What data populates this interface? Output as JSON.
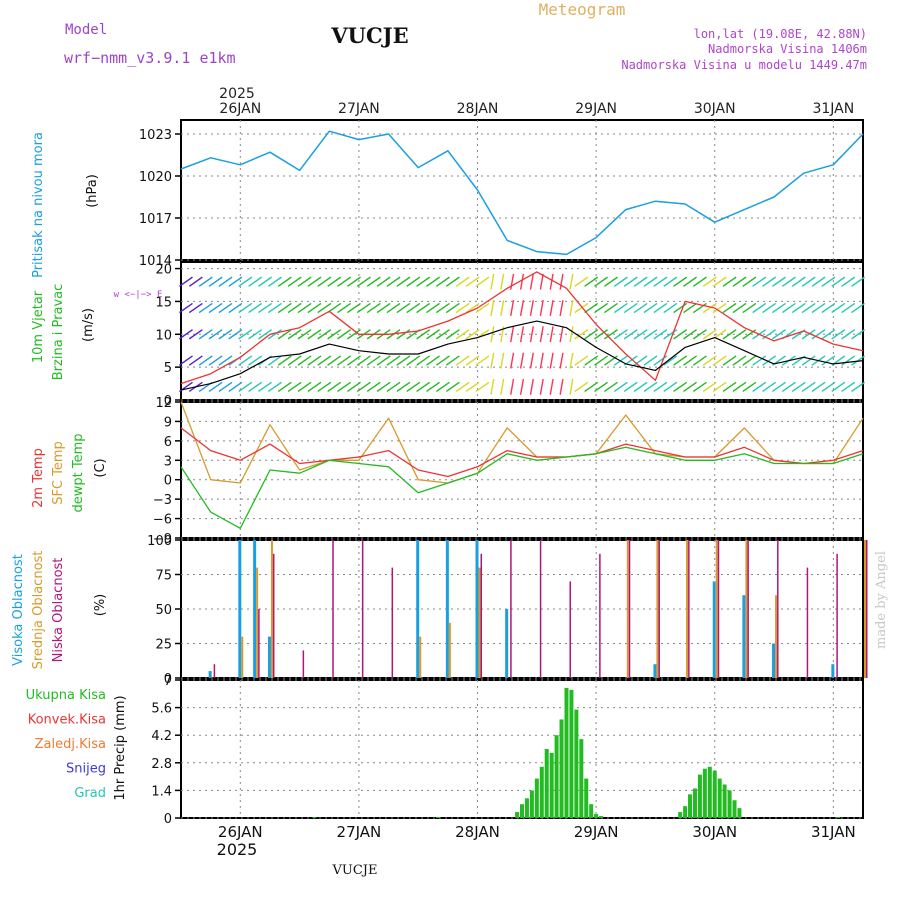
{
  "header": {
    "model_label": "Model",
    "model_name": "wrf−nmm_v3.9.1  e1km",
    "station": "VUCJE",
    "meteogram_label": "Meteogram",
    "lonlat": "lon,lat (19.08E, 42.88N)",
    "elevation": "Nadmorska Visina 1406m",
    "model_elevation": "Nadmorska Visina u modelu 1449.47m"
  },
  "footer": {
    "station": "VUCJE",
    "watermark": "made by Angel"
  },
  "time_axis": {
    "year": "2025",
    "days": [
      "26JAN",
      "27JAN",
      "28JAN",
      "29JAN",
      "30JAN",
      "31JAN"
    ],
    "start_hour": 0,
    "end_hour": 138
  },
  "colors": {
    "pressure": "#1a9fe0",
    "temp": "#ee3333",
    "sfc_temp": "#d99a2b",
    "dewpt": "#22bb22",
    "wind_speed": "#000000",
    "gust": "#ee3333",
    "high_cloud": "#1a9fe0",
    "mid_cloud": "#d99a2b",
    "low_cloud": "#b0157e",
    "precip": "#22bb22"
  },
  "panels": {
    "pressure": {
      "label": "Pritisak na nivou mora",
      "unit": "(hPa)",
      "ticks": [
        "1014",
        "1017",
        "1020",
        "1023"
      ]
    },
    "wind": {
      "label1": "10m Vjetar",
      "label2": "Brzina i Pravac",
      "unit": "(m/s)",
      "ticks": [
        "0",
        "5",
        "10",
        "15",
        "20"
      ],
      "compass": "w  <−|−>  E"
    },
    "temp": {
      "label1": "2m Temp",
      "label2": "SFC Temp",
      "label3": "dewpt Temp",
      "unit": "(C)",
      "ticks": [
        "−9",
        "−6",
        "−3",
        "0",
        "3",
        "6",
        "9",
        "12"
      ]
    },
    "cloud": {
      "label1": "Visoka Oblacnost",
      "label2": "Srednja Oblacnost",
      "label3": "Niska Oblacnost",
      "unit": "(%)",
      "ticks": [
        "0",
        "25",
        "50",
        "75",
        "100"
      ]
    },
    "precip": {
      "unit": "1hr Precip (mm)",
      "ticks": [
        "0",
        "1.4",
        "2.8",
        "4.2",
        "5.6",
        "7"
      ],
      "legend": [
        {
          "name": "Ukupna Kisa",
          "color": "#22bb22"
        },
        {
          "name": "Konvek.Kisa",
          "color": "#ee3333"
        },
        {
          "name": "Zaledj.Kisa",
          "color": "#f07a30"
        },
        {
          "name": "Snijeg",
          "color": "#3a3ae0"
        },
        {
          "name": "Grad",
          "color": "#22c8b4"
        }
      ]
    }
  },
  "chart_data": [
    {
      "type": "line",
      "title": "Pritisak na nivou mora",
      "ylabel": "(hPa)",
      "ylim": [
        1014,
        1024
      ],
      "x_hours": [
        0,
        6,
        12,
        18,
        24,
        30,
        36,
        42,
        48,
        54,
        60,
        66,
        72,
        78,
        84,
        90,
        96,
        102,
        108,
        114,
        120,
        126,
        132,
        138
      ],
      "series": [
        {
          "values": [
            1020.5,
            1021.3,
            1020.8,
            1021.7,
            1020.4,
            1023.2,
            1022.6,
            1023.0,
            1020.6,
            1021.8,
            1019.0,
            1015.4,
            1014.6,
            1014.4,
            1015.6,
            1017.6,
            1018.2,
            1018.0,
            1016.7,
            1017.6,
            1018.5,
            1020.2,
            1020.8,
            1023.0
          ]
        }
      ]
    },
    {
      "type": "line",
      "title": "10m Vjetar Brzina i Pravac",
      "ylabel": "(m/s)",
      "ylim": [
        0,
        21
      ],
      "x_hours": [
        0,
        6,
        12,
        18,
        24,
        30,
        36,
        42,
        48,
        54,
        60,
        66,
        72,
        78,
        84,
        90,
        96,
        102,
        108,
        114,
        120,
        126,
        132,
        138
      ],
      "series": [
        {
          "name": "speed",
          "values": [
            1.5,
            2.5,
            4.0,
            6.5,
            7.0,
            8.5,
            7.5,
            7.0,
            7.0,
            8.5,
            9.5,
            11.0,
            12.0,
            11.0,
            8.0,
            5.5,
            4.5,
            8.0,
            9.5,
            7.5,
            5.5,
            6.5,
            5.5,
            6.0
          ]
        },
        {
          "name": "gust",
          "values": [
            2.5,
            4.0,
            6.5,
            10.0,
            11.0,
            13.5,
            10.0,
            10.0,
            10.5,
            12.0,
            14.0,
            17.0,
            19.5,
            17.0,
            11.5,
            7.0,
            3.0,
            15.0,
            14.0,
            11.0,
            9.0,
            10.5,
            8.5,
            7.5
          ]
        }
      ]
    },
    {
      "type": "line",
      "title": "2m Temp / SFC Temp / dewpt Temp",
      "ylabel": "(C)",
      "ylim": [
        -9,
        12
      ],
      "x_hours": [
        0,
        6,
        12,
        18,
        24,
        30,
        36,
        42,
        48,
        54,
        60,
        66,
        72,
        78,
        84,
        90,
        96,
        102,
        108,
        114,
        120,
        126,
        132,
        138
      ],
      "series": [
        {
          "name": "2m Temp",
          "values": [
            8.0,
            4.5,
            3.0,
            5.5,
            2.5,
            3.0,
            3.5,
            4.5,
            1.5,
            0.5,
            2.0,
            4.5,
            3.5,
            3.5,
            4.0,
            5.5,
            4.5,
            3.5,
            3.5,
            5.0,
            3.0,
            2.5,
            3.0,
            4.5
          ]
        },
        {
          "name": "SFC Temp",
          "values": [
            12.0,
            0.0,
            -0.5,
            8.5,
            1.5,
            3.0,
            3.0,
            9.5,
            0.0,
            -0.5,
            1.0,
            8.0,
            3.5,
            3.5,
            4.0,
            10.0,
            4.0,
            3.5,
            3.5,
            8.0,
            3.0,
            2.5,
            2.5,
            9.5
          ]
        },
        {
          "name": "dewpt Temp",
          "values": [
            2.0,
            -5.0,
            -7.5,
            1.5,
            1.0,
            3.0,
            2.5,
            2.0,
            -2.0,
            -0.5,
            1.0,
            4.0,
            3.0,
            3.5,
            4.0,
            5.0,
            4.0,
            3.0,
            3.0,
            4.0,
            2.5,
            2.5,
            2.5,
            4.0
          ]
        }
      ]
    },
    {
      "type": "bar",
      "title": "Visoka / Srednja / Niska Oblacnost",
      "ylabel": "(%)",
      "ylim": [
        0,
        100
      ],
      "x_hours": [
        0,
        6,
        12,
        15,
        18,
        24,
        30,
        36,
        42,
        48,
        54,
        60,
        66,
        72,
        78,
        84,
        90,
        96,
        102,
        108,
        114,
        120,
        126,
        132,
        138
      ],
      "series": [
        {
          "name": "Visoka Oblacnost",
          "values": [
            0,
            5,
            100,
            100,
            30,
            0,
            0,
            0,
            0,
            100,
            100,
            100,
            50,
            0,
            0,
            0,
            0,
            10,
            0,
            70,
            60,
            25,
            0,
            10,
            0
          ]
        },
        {
          "name": "Srednja Oblacnost",
          "values": [
            0,
            0,
            30,
            80,
            100,
            0,
            0,
            0,
            0,
            30,
            40,
            80,
            0,
            0,
            0,
            0,
            100,
            100,
            100,
            100,
            100,
            60,
            0,
            0,
            100
          ]
        },
        {
          "name": "Niska Oblacnost",
          "values": [
            0,
            10,
            0,
            50,
            90,
            20,
            100,
            100,
            80,
            0,
            0,
            90,
            100,
            100,
            70,
            90,
            100,
            100,
            100,
            100,
            100,
            100,
            80,
            90,
            100
          ]
        }
      ]
    },
    {
      "type": "bar",
      "title": "1hr Precip (mm)",
      "ylabel": "1hr Precip (mm)",
      "ylim": [
        0,
        7
      ],
      "x_hours": [
        27,
        52,
        68,
        69,
        70,
        71,
        72,
        73,
        74,
        75,
        76,
        77,
        78,
        79,
        80,
        81,
        82,
        83,
        84,
        85,
        101,
        102,
        103,
        104,
        105,
        106,
        107,
        108,
        109,
        110,
        111,
        112,
        113,
        133
      ],
      "series": [
        {
          "name": "Ukupna Kisa",
          "values": [
            0.05,
            0.05,
            0.3,
            0.7,
            1.0,
            1.4,
            2.0,
            2.6,
            3.5,
            3.3,
            4.2,
            5.0,
            6.6,
            6.5,
            5.5,
            4.0,
            2.0,
            0.7,
            0.2,
            0.1,
            0.3,
            0.6,
            1.2,
            1.5,
            2.2,
            2.5,
            2.6,
            2.4,
            2.0,
            1.7,
            1.4,
            0.9,
            0.5,
            0.05
          ]
        }
      ]
    }
  ]
}
